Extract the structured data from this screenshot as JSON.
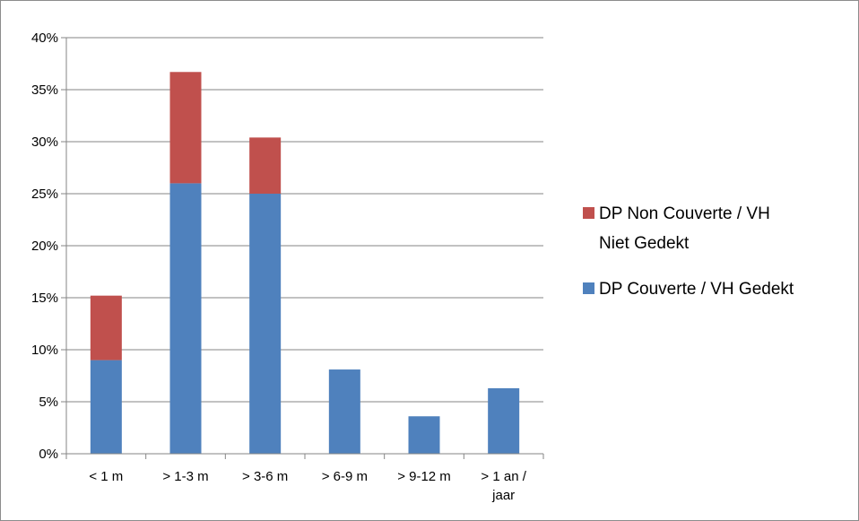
{
  "chart_data": {
    "type": "bar",
    "stacked": true,
    "categories": [
      "< 1 m",
      "> 1-3 m",
      "> 3-6 m",
      "> 6-9 m",
      "> 9-12 m",
      "> 1 an / jaar"
    ],
    "category_lines": [
      [
        "< 1 m"
      ],
      [
        "> 1-3 m"
      ],
      [
        "> 3-6 m"
      ],
      [
        "> 6-9 m"
      ],
      [
        "> 9-12 m"
      ],
      [
        "> 1 an /",
        "jaar"
      ]
    ],
    "series": [
      {
        "name": "DP Couverte / VH Gedekt",
        "color": "#4F81BD",
        "values": [
          9.0,
          26.0,
          25.0,
          8.1,
          3.6,
          6.3
        ]
      },
      {
        "name": "DP Non Couverte / VH Niet Gedekt",
        "color": "#C0504D",
        "values": [
          6.2,
          10.7,
          5.4,
          0,
          0,
          0
        ]
      }
    ],
    "ylim": [
      0,
      40
    ],
    "yticks": [
      0,
      5,
      10,
      15,
      20,
      25,
      30,
      35,
      40
    ],
    "ytick_format": "percent",
    "title": "",
    "xlabel": "",
    "ylabel": "",
    "grid": "horizontal",
    "legend": {
      "position": "right",
      "entries": [
        {
          "lines": [
            "DP Non Couverte / VH",
            "Niet Gedekt"
          ],
          "color": "#C0504D"
        },
        {
          "lines": [
            "DP Couverte / VH Gedekt"
          ],
          "color": "#4F81BD"
        }
      ]
    }
  }
}
